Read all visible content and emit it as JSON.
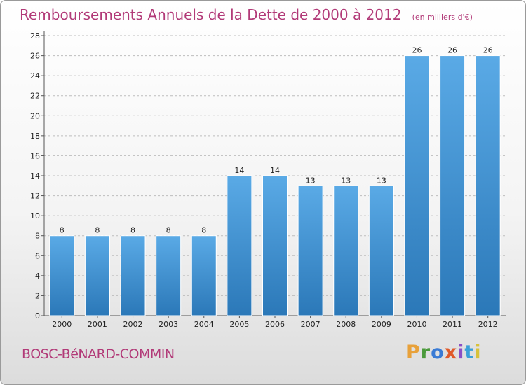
{
  "header": {
    "title": "Remboursements Annuels de la Dette de 2000 à 2012",
    "unit": "(en milliers d'€)"
  },
  "footer": {
    "commune": "BOSC-BéNARD-COMMIN",
    "logo_text": "Proxiti",
    "logo_colors": [
      "#e8a13a",
      "#4b9a3b",
      "#3a7bd5",
      "#e05a2a",
      "#8b4fc6",
      "#3aa0d8",
      "#d8c23a"
    ]
  },
  "chart_data": {
    "type": "bar",
    "categories": [
      "2000",
      "2001",
      "2002",
      "2003",
      "2004",
      "2005",
      "2006",
      "2007",
      "2008",
      "2009",
      "2010",
      "2011",
      "2012"
    ],
    "values": [
      8,
      8,
      8,
      8,
      8,
      14,
      14,
      13,
      13,
      13,
      26,
      26,
      26
    ],
    "data_labels": [
      "8",
      "8",
      "8",
      "8",
      "8",
      "14",
      "14",
      "13",
      "13",
      "13",
      "26",
      "26",
      "26"
    ],
    "yticks": [
      "0",
      "2",
      "4",
      "6",
      "8",
      "10",
      "12",
      "14",
      "16",
      "18",
      "20",
      "22",
      "24",
      "26",
      "28"
    ],
    "ylim": [
      0,
      28
    ],
    "grid": true,
    "bar_color": "#4d9fdf",
    "bar_color_dark": "#2b78b8"
  }
}
